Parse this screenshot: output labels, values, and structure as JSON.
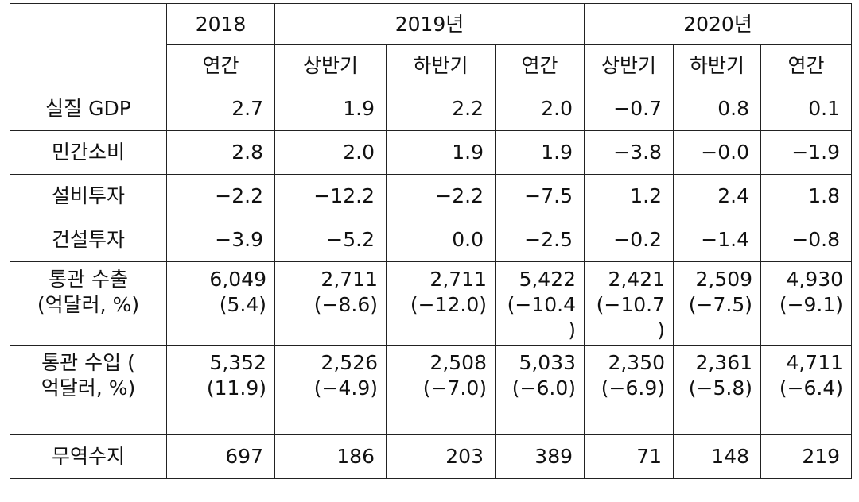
{
  "header": {
    "years": [
      {
        "label": "2018",
        "span": 1
      },
      {
        "label": "2019년",
        "span": 3
      },
      {
        "label": "2020년",
        "span": 3
      }
    ],
    "periods": [
      "연간",
      "상반기",
      "하반기",
      "연간",
      "상반기",
      "하반기",
      "연간"
    ]
  },
  "rows": [
    {
      "label": [
        "실질 GDP"
      ],
      "values": [
        [
          "2.7"
        ],
        [
          "1.9"
        ],
        [
          "2.2"
        ],
        [
          "2.0"
        ],
        [
          "−0.7"
        ],
        [
          "0.8"
        ],
        [
          "0.1"
        ]
      ]
    },
    {
      "label": [
        "민간소비"
      ],
      "values": [
        [
          "2.8"
        ],
        [
          "2.0"
        ],
        [
          "1.9"
        ],
        [
          "1.9"
        ],
        [
          "−3.8"
        ],
        [
          "−0.0"
        ],
        [
          "−1.9"
        ]
      ]
    },
    {
      "label": [
        "설비투자"
      ],
      "values": [
        [
          "−2.2"
        ],
        [
          "−12.2"
        ],
        [
          "−2.2"
        ],
        [
          "−7.5"
        ],
        [
          "1.2"
        ],
        [
          "2.4"
        ],
        [
          "1.8"
        ]
      ]
    },
    {
      "label": [
        "건설투자"
      ],
      "values": [
        [
          "−3.9"
        ],
        [
          "−5.2"
        ],
        [
          "0.0"
        ],
        [
          "−2.5"
        ],
        [
          "−0.2"
        ],
        [
          "−1.4"
        ],
        [
          "−0.8"
        ]
      ]
    },
    {
      "label": [
        "통관 수출",
        "(억달러, %)"
      ],
      "values": [
        [
          "6,049",
          "(5.4)"
        ],
        [
          "2,711",
          "(−8.6)"
        ],
        [
          "2,711",
          "(−12.0)"
        ],
        [
          "5,422",
          "(−10.4",
          ")"
        ],
        [
          "2,421",
          "(−10.7",
          ")"
        ],
        [
          "2,509",
          "(−7.5)"
        ],
        [
          "4,930",
          "(−9.1)"
        ]
      ]
    },
    {
      "label": [
        "통관 수입 (",
        "억달러, %)"
      ],
      "values": [
        [
          "5,352",
          "(11.9)"
        ],
        [
          "2,526",
          "(−4.9)"
        ],
        [
          "2,508",
          "(−7.0)"
        ],
        [
          "5,033",
          "(−6.0)"
        ],
        [
          "2,350",
          "(−6.9)"
        ],
        [
          "2,361",
          "(−5.8)"
        ],
        [
          "4,711",
          "(−6.4)"
        ]
      ]
    },
    {
      "label": [
        "무역수지"
      ],
      "values": [
        [
          "697"
        ],
        [
          "186"
        ],
        [
          "203"
        ],
        [
          "389"
        ],
        [
          "71"
        ],
        [
          "148"
        ],
        [
          "219"
        ]
      ]
    }
  ]
}
